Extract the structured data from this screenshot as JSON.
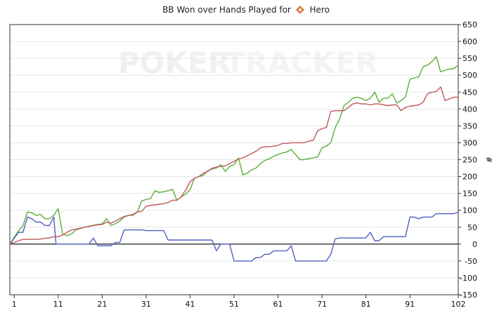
{
  "title": {
    "prefix": "BB Won over Hands Played for",
    "player": "Hero",
    "player_icon": "diamond-icon"
  },
  "watermark": {
    "part1": "POKER",
    "part2": "TRACKER"
  },
  "colors": {
    "green": "#5aae3c",
    "red": "#c05858",
    "blue": "#5060c0",
    "zero_line": "#000000",
    "grid": "#e6e6e6",
    "icon_orange": "#e0783c"
  },
  "chart_data": {
    "type": "line",
    "title": "BB Won over Hands Played for Hero",
    "xlabel": "",
    "ylabel": "#",
    "xlim": [
      0,
      102
    ],
    "ylim": [
      -150,
      650
    ],
    "x_ticks": [
      1,
      11,
      21,
      31,
      41,
      51,
      61,
      71,
      81,
      91,
      102
    ],
    "y_ticks": [
      -150,
      -100,
      -50,
      0,
      50,
      100,
      150,
      200,
      250,
      300,
      350,
      400,
      450,
      500,
      550,
      600,
      650
    ],
    "y_axis_side": "right",
    "series": [
      {
        "color": "green",
        "points": [
          [
            0,
            0
          ],
          [
            2,
            40
          ],
          [
            3,
            55
          ],
          [
            4,
            95
          ],
          [
            5,
            93
          ],
          [
            6,
            85
          ],
          [
            7,
            88
          ],
          [
            8,
            75
          ],
          [
            9,
            75
          ],
          [
            10,
            85
          ],
          [
            11,
            105
          ],
          [
            12,
            30
          ],
          [
            13,
            25
          ],
          [
            14,
            30
          ],
          [
            15,
            42
          ],
          [
            16,
            46
          ],
          [
            17,
            50
          ],
          [
            18,
            53
          ],
          [
            19,
            56
          ],
          [
            20,
            58
          ],
          [
            21,
            60
          ],
          [
            22,
            75
          ],
          [
            23,
            55
          ],
          [
            24,
            60
          ],
          [
            25,
            68
          ],
          [
            26,
            80
          ],
          [
            27,
            85
          ],
          [
            28,
            85
          ],
          [
            29,
            95
          ],
          [
            30,
            128
          ],
          [
            31,
            132
          ],
          [
            32,
            135
          ],
          [
            33,
            158
          ],
          [
            34,
            153
          ],
          [
            35,
            155
          ],
          [
            36,
            158
          ],
          [
            37,
            162
          ],
          [
            38,
            130
          ],
          [
            39,
            140
          ],
          [
            40,
            148
          ],
          [
            41,
            162
          ],
          [
            42,
            195
          ],
          [
            43,
            200
          ],
          [
            44,
            203
          ],
          [
            45,
            217
          ],
          [
            46,
            222
          ],
          [
            47,
            225
          ],
          [
            48,
            235
          ],
          [
            49,
            215
          ],
          [
            50,
            230
          ],
          [
            51,
            235
          ],
          [
            52,
            255
          ],
          [
            53,
            205
          ],
          [
            54,
            210
          ],
          [
            55,
            220
          ],
          [
            56,
            225
          ],
          [
            57,
            238
          ],
          [
            58,
            248
          ],
          [
            59,
            252
          ],
          [
            60,
            260
          ],
          [
            61,
            265
          ],
          [
            62,
            270
          ],
          [
            63,
            273
          ],
          [
            64,
            280
          ],
          [
            65,
            265
          ],
          [
            66,
            250
          ],
          [
            67,
            250
          ],
          [
            68,
            253
          ],
          [
            69,
            255
          ],
          [
            70,
            258
          ],
          [
            71,
            285
          ],
          [
            72,
            290
          ],
          [
            73,
            300
          ],
          [
            74,
            345
          ],
          [
            75,
            370
          ],
          [
            76,
            410
          ],
          [
            77,
            420
          ],
          [
            78,
            432
          ],
          [
            79,
            435
          ],
          [
            80,
            432
          ],
          [
            81,
            425
          ],
          [
            82,
            432
          ],
          [
            83,
            450
          ],
          [
            84,
            420
          ],
          [
            85,
            432
          ],
          [
            86,
            432
          ],
          [
            87,
            445
          ],
          [
            88,
            418
          ],
          [
            89,
            425
          ],
          [
            90,
            435
          ],
          [
            91,
            488
          ],
          [
            92,
            492
          ],
          [
            93,
            495
          ],
          [
            94,
            525
          ],
          [
            95,
            530
          ],
          [
            96,
            540
          ],
          [
            97,
            555
          ],
          [
            98,
            510
          ],
          [
            99,
            515
          ],
          [
            100,
            518
          ],
          [
            101,
            520
          ],
          [
            102,
            530
          ]
        ]
      },
      {
        "color": "red",
        "points": [
          [
            0,
            0
          ],
          [
            2,
            10
          ],
          [
            3,
            14
          ],
          [
            4,
            14
          ],
          [
            5,
            14
          ],
          [
            6,
            14
          ],
          [
            7,
            15
          ],
          [
            8,
            17
          ],
          [
            9,
            18
          ],
          [
            10,
            22
          ],
          [
            11,
            22
          ],
          [
            12,
            27
          ],
          [
            13,
            35
          ],
          [
            14,
            42
          ],
          [
            15,
            44
          ],
          [
            16,
            47
          ],
          [
            17,
            50
          ],
          [
            18,
            52
          ],
          [
            19,
            55
          ],
          [
            20,
            57
          ],
          [
            21,
            58
          ],
          [
            22,
            65
          ],
          [
            23,
            62
          ],
          [
            24,
            68
          ],
          [
            25,
            75
          ],
          [
            26,
            82
          ],
          [
            27,
            85
          ],
          [
            28,
            88
          ],
          [
            29,
            95
          ],
          [
            30,
            97
          ],
          [
            31,
            112
          ],
          [
            32,
            115
          ],
          [
            33,
            116
          ],
          [
            34,
            118
          ],
          [
            35,
            120
          ],
          [
            36,
            123
          ],
          [
            37,
            130
          ],
          [
            38,
            130
          ],
          [
            39,
            140
          ],
          [
            40,
            160
          ],
          [
            41,
            185
          ],
          [
            42,
            195
          ],
          [
            43,
            200
          ],
          [
            44,
            210
          ],
          [
            45,
            215
          ],
          [
            46,
            225
          ],
          [
            47,
            228
          ],
          [
            48,
            230
          ],
          [
            49,
            232
          ],
          [
            50,
            238
          ],
          [
            51,
            245
          ],
          [
            52,
            252
          ],
          [
            53,
            255
          ],
          [
            54,
            262
          ],
          [
            55,
            268
          ],
          [
            56,
            275
          ],
          [
            57,
            285
          ],
          [
            58,
            288
          ],
          [
            59,
            288
          ],
          [
            60,
            290
          ],
          [
            61,
            292
          ],
          [
            62,
            298
          ],
          [
            63,
            298
          ],
          [
            64,
            300
          ],
          [
            65,
            300
          ],
          [
            66,
            300
          ],
          [
            67,
            300
          ],
          [
            68,
            305
          ],
          [
            69,
            307
          ],
          [
            70,
            335
          ],
          [
            71,
            342
          ],
          [
            72,
            345
          ],
          [
            73,
            393
          ],
          [
            74,
            395
          ],
          [
            75,
            395
          ],
          [
            76,
            395
          ],
          [
            77,
            405
          ],
          [
            78,
            415
          ],
          [
            79,
            418
          ],
          [
            80,
            415
          ],
          [
            81,
            415
          ],
          [
            82,
            412
          ],
          [
            83,
            415
          ],
          [
            84,
            415
          ],
          [
            85,
            412
          ],
          [
            86,
            410
          ],
          [
            87,
            412
          ],
          [
            88,
            412
          ],
          [
            89,
            395
          ],
          [
            90,
            405
          ],
          [
            91,
            408
          ],
          [
            92,
            410
          ],
          [
            93,
            412
          ],
          [
            94,
            420
          ],
          [
            95,
            445
          ],
          [
            96,
            450
          ],
          [
            97,
            452
          ],
          [
            98,
            465
          ],
          [
            99,
            425
          ],
          [
            100,
            430
          ],
          [
            101,
            435
          ],
          [
            102,
            435
          ]
        ]
      },
      {
        "color": "blue",
        "points": [
          [
            0,
            0
          ],
          [
            2,
            35
          ],
          [
            3,
            35
          ],
          [
            4,
            80
          ],
          [
            5,
            75
          ],
          [
            6,
            65
          ],
          [
            7,
            65
          ],
          [
            8,
            55
          ],
          [
            9,
            55
          ],
          [
            10,
            80
          ],
          [
            10.5,
            0
          ],
          [
            18,
            0
          ],
          [
            19,
            18
          ],
          [
            20,
            -5
          ],
          [
            21,
            -5
          ],
          [
            22,
            -5
          ],
          [
            23,
            -5
          ],
          [
            23.5,
            0
          ],
          [
            24,
            5
          ],
          [
            25,
            5
          ],
          [
            26,
            42
          ],
          [
            27,
            42
          ],
          [
            28,
            42
          ],
          [
            29,
            42
          ],
          [
            30,
            42
          ],
          [
            31,
            40
          ],
          [
            32,
            40
          ],
          [
            33,
            40
          ],
          [
            34,
            40
          ],
          [
            35,
            40
          ],
          [
            36,
            12
          ],
          [
            37,
            12
          ],
          [
            38,
            12
          ],
          [
            39,
            12
          ],
          [
            40,
            12
          ],
          [
            41,
            12
          ],
          [
            42,
            12
          ],
          [
            43,
            12
          ],
          [
            44,
            12
          ],
          [
            45,
            12
          ],
          [
            46,
            12
          ],
          [
            47,
            -20
          ],
          [
            48,
            0
          ],
          [
            49,
            0
          ],
          [
            50,
            0
          ],
          [
            51,
            -50
          ],
          [
            52,
            -50
          ],
          [
            53,
            -50
          ],
          [
            54,
            -50
          ],
          [
            55,
            -50
          ],
          [
            56,
            -40
          ],
          [
            57,
            -40
          ],
          [
            58,
            -30
          ],
          [
            59,
            -30
          ],
          [
            60,
            -20
          ],
          [
            61,
            -20
          ],
          [
            62,
            -20
          ],
          [
            63,
            -20
          ],
          [
            64,
            -5
          ],
          [
            65,
            -50
          ],
          [
            66,
            -50
          ],
          [
            67,
            -50
          ],
          [
            68,
            -50
          ],
          [
            69,
            -50
          ],
          [
            70,
            -50
          ],
          [
            71,
            -50
          ],
          [
            72,
            -50
          ],
          [
            73,
            -30
          ],
          [
            74,
            15
          ],
          [
            75,
            18
          ],
          [
            76,
            18
          ],
          [
            77,
            18
          ],
          [
            78,
            18
          ],
          [
            79,
            18
          ],
          [
            80,
            18
          ],
          [
            81,
            18
          ],
          [
            82,
            35
          ],
          [
            83,
            10
          ],
          [
            84,
            10
          ],
          [
            85,
            22
          ],
          [
            86,
            22
          ],
          [
            87,
            22
          ],
          [
            88,
            22
          ],
          [
            89,
            22
          ],
          [
            90,
            22
          ],
          [
            91,
            80
          ],
          [
            92,
            80
          ],
          [
            93,
            75
          ],
          [
            94,
            80
          ],
          [
            95,
            80
          ],
          [
            96,
            80
          ],
          [
            97,
            90
          ],
          [
            98,
            90
          ],
          [
            99,
            90
          ],
          [
            100,
            90
          ],
          [
            101,
            90
          ],
          [
            102,
            95
          ]
        ]
      }
    ]
  }
}
